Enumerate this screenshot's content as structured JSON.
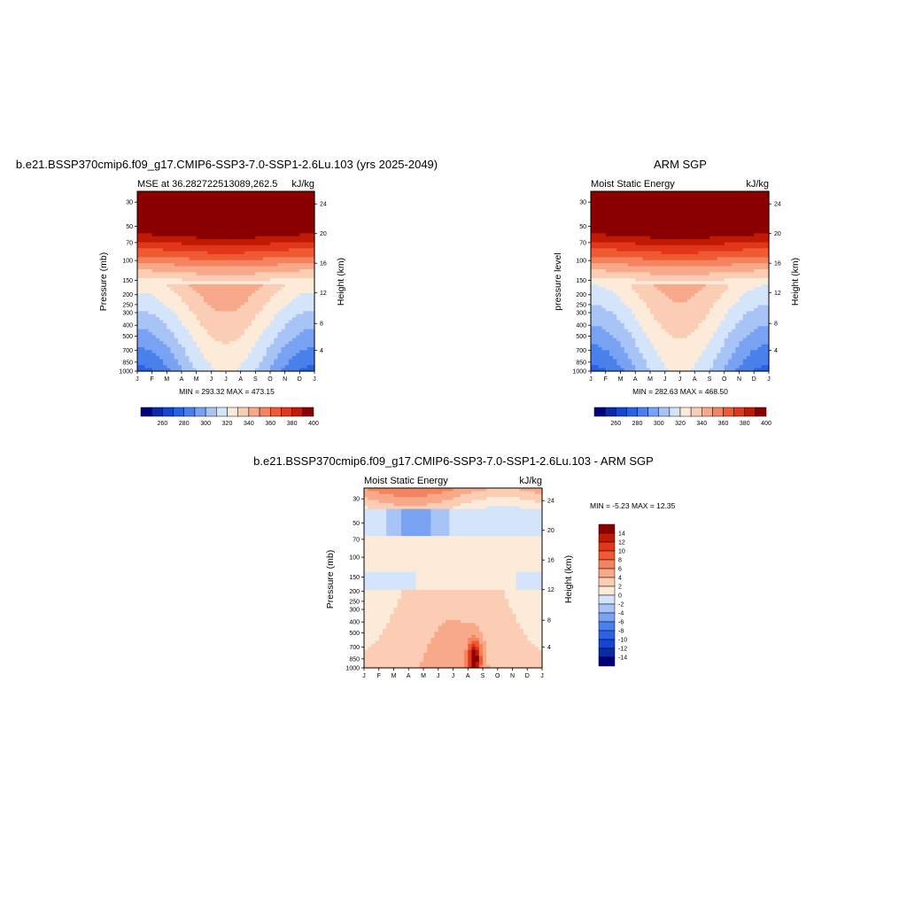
{
  "figure": {
    "panel_left": {
      "title": "b.e21.BSSP370cmip6.f09_g17.CMIP6-SSP3-7.0-SSP1-2.6Lu.103 (yrs 2025-2049)",
      "left_string": "MSE at 36.282722513089,262.5",
      "right_string": "kJ/kg",
      "ylabel": "Pressure (mb)",
      "ylabel_right": "Height (km)",
      "minmax": "MIN = 293.32 MAX = 473.15"
    },
    "panel_right": {
      "title": "ARM SGP",
      "left_string": "Moist Static Energy",
      "right_string": "kJ/kg",
      "ylabel": "pressure level",
      "ylabel_right": "Height (km)",
      "minmax": "MIN = 282.63 MAX = 468.50"
    },
    "panel_diff": {
      "title": "b.e21.BSSP370cmip6.f09_g17.CMIP6-SSP3-7.0-SSP1-2.6Lu.103 - ARM SGP",
      "left_string": "Moist Static Energy",
      "right_string": "kJ/kg",
      "ylabel": "Pressure (mb)",
      "ylabel_right": "Height (km)",
      "minmax": "MIN =  -5.23 MAX =  12.35"
    }
  },
  "chart_data": [
    {
      "type": "heatmap",
      "title": "b.e21.BSSP370cmip6.f09_g17.CMIP6-SSP3-7.0-SSP1-2.6Lu.103 (yrs 2025-2049)",
      "x_ticks": [
        "J",
        "F",
        "M",
        "A",
        "M",
        "J",
        "J",
        "A",
        "S",
        "O",
        "N",
        "D",
        "J"
      ],
      "y_ticks_pressure": [
        "30",
        "50",
        "70",
        "100",
        "150",
        "200",
        "250",
        "300",
        "400",
        "500",
        "700",
        "850",
        "1000"
      ],
      "y_ticks_height": [
        "24",
        "20",
        "16",
        "12",
        "8",
        "4"
      ],
      "colorbar_labels": [
        "260",
        "280",
        "300",
        "320",
        "340",
        "360",
        "380",
        "400"
      ],
      "levels": [
        250,
        260,
        270,
        280,
        290,
        300,
        310,
        320,
        330,
        340,
        350,
        360,
        370,
        380,
        390,
        400,
        410
      ],
      "min": 293.32,
      "max": 473.15
    },
    {
      "type": "heatmap",
      "title": "ARM SGP",
      "x_ticks": [
        "J",
        "F",
        "M",
        "A",
        "M",
        "J",
        "J",
        "A",
        "S",
        "O",
        "N",
        "D",
        "J"
      ],
      "y_ticks_pressure": [
        "30",
        "50",
        "70",
        "100",
        "150",
        "200",
        "250",
        "300",
        "400",
        "500",
        "700",
        "850",
        "1000"
      ],
      "y_ticks_height": [
        "24",
        "20",
        "16",
        "12",
        "8",
        "4"
      ],
      "colorbar_labels": [
        "260",
        "280",
        "300",
        "320",
        "340",
        "360",
        "380",
        "400"
      ],
      "levels": [
        250,
        260,
        270,
        280,
        290,
        300,
        310,
        320,
        330,
        340,
        350,
        360,
        370,
        380,
        390,
        400,
        410
      ],
      "min": 282.63,
      "max": 468.5
    },
    {
      "type": "heatmap",
      "title": "b.e21.BSSP370cmip6.f09_g17.CMIP6-SSP3-7.0-SSP1-2.6Lu.103 - ARM SGP",
      "x_ticks": [
        "J",
        "F",
        "M",
        "A",
        "M",
        "J",
        "J",
        "A",
        "S",
        "O",
        "N",
        "D",
        "J"
      ],
      "y_ticks_pressure": [
        "30",
        "50",
        "70",
        "100",
        "150",
        "200",
        "250",
        "300",
        "400",
        "500",
        "700",
        "850",
        "1000"
      ],
      "y_ticks_height": [
        "24",
        "20",
        "16",
        "12",
        "8",
        "4"
      ],
      "colorbar_labels": [
        "14",
        "12",
        "10",
        "8",
        "6",
        "4",
        "2",
        "0",
        "-2",
        "-4",
        "-6",
        "-8",
        "-10",
        "-12",
        "-14"
      ],
      "levels": [
        -15,
        -14,
        -12,
        -10,
        -8,
        -6,
        -4,
        -2,
        0,
        2,
        4,
        6,
        8,
        10,
        12,
        14,
        15
      ],
      "min": -5.23,
      "max": 12.35
    }
  ],
  "palette": [
    "#00007f",
    "#0a2aa8",
    "#1446d0",
    "#2a62e6",
    "#4a80ec",
    "#7aa2f2",
    "#a8c4f6",
    "#d4e4fa",
    "#fdebd9",
    "#fbcdb4",
    "#f8a98a",
    "#f4845f",
    "#ef5a35",
    "#e2361a",
    "#c01a05",
    "#8a0000"
  ]
}
